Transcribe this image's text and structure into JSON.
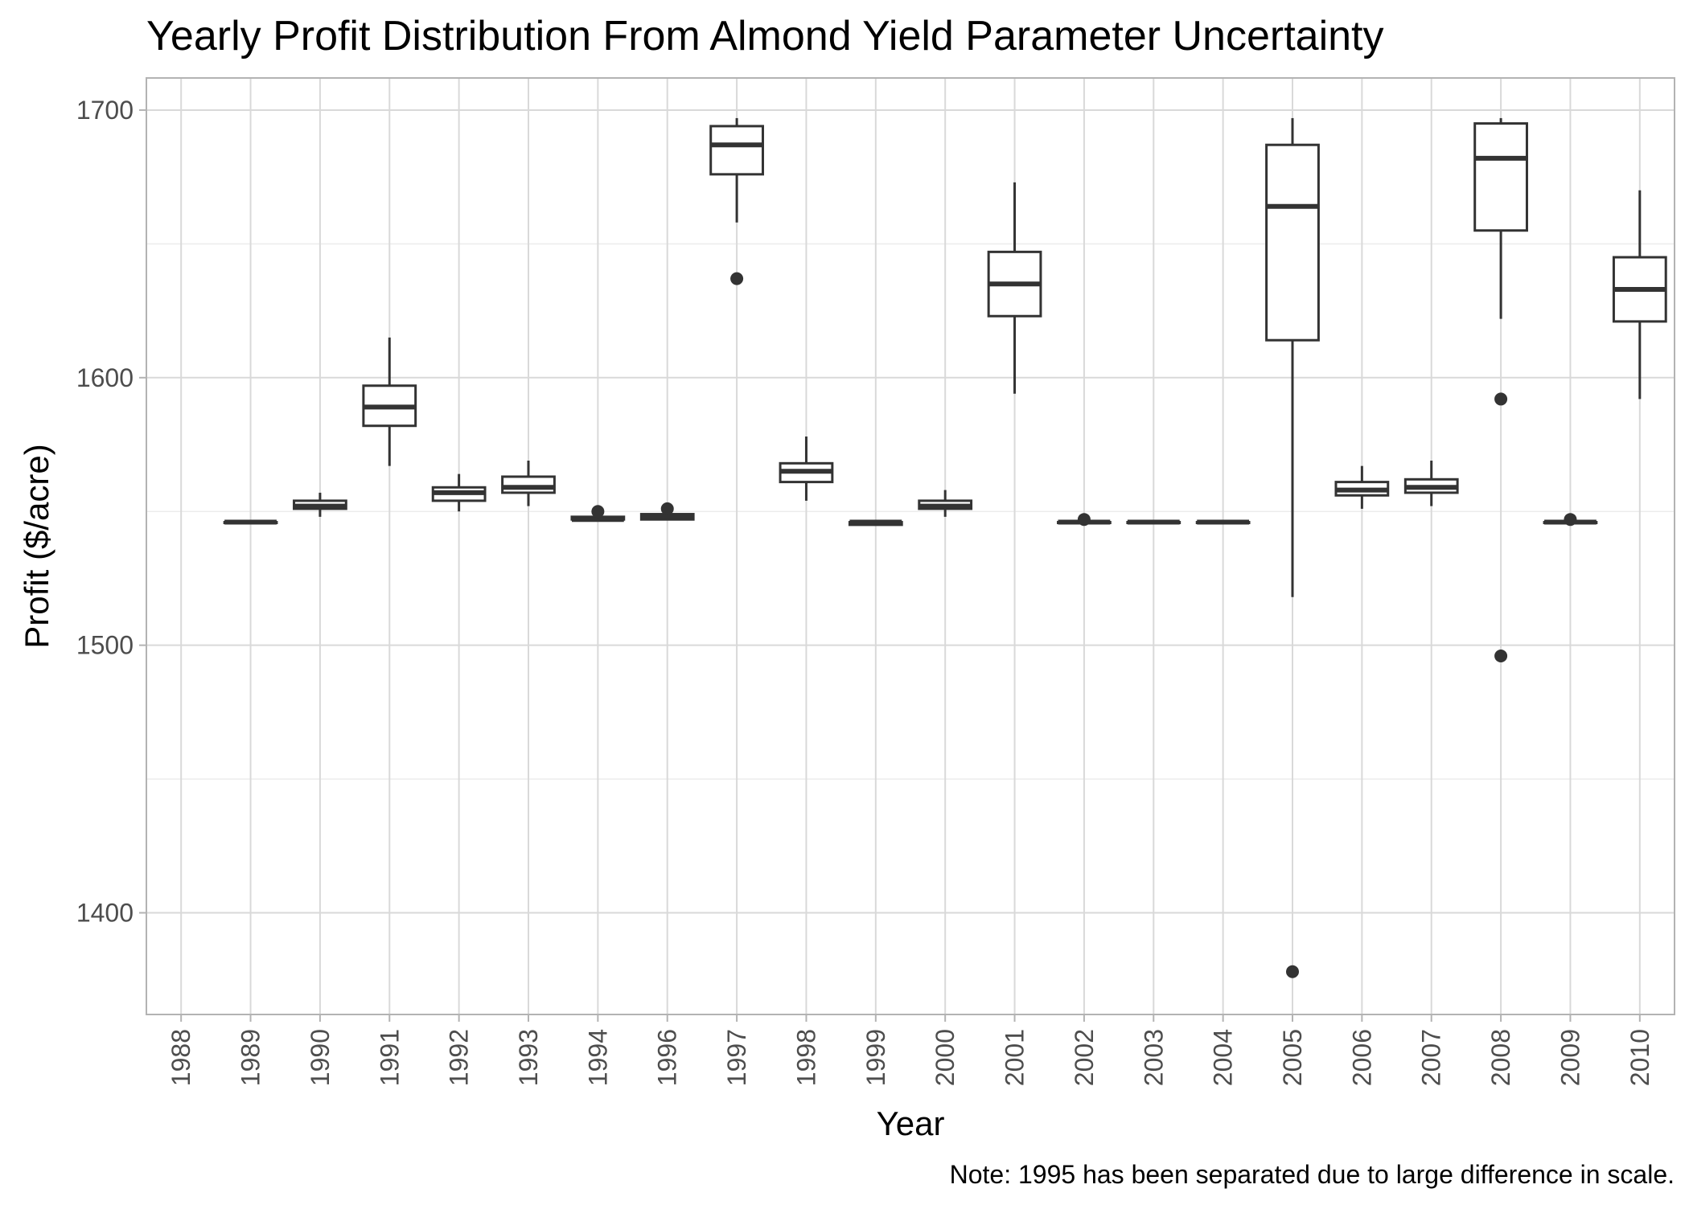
{
  "chart_data": {
    "type": "boxplot",
    "title": "Yearly Profit Distribution From Almond Yield Parameter Uncertainty",
    "xlabel": "Year",
    "ylabel": "Profit ($/acre)",
    "caption": "Note: 1995 has been separated due to large difference in scale.",
    "ylim": [
      1362,
      1712
    ],
    "yticks": [
      1400,
      1500,
      1600,
      1700
    ],
    "grid": true,
    "categories": [
      "1988",
      "1989",
      "1990",
      "1991",
      "1992",
      "1993",
      "1994",
      "1996",
      "1997",
      "1998",
      "1999",
      "2000",
      "2001",
      "2002",
      "2003",
      "2004",
      "2005",
      "2006",
      "2007",
      "2008",
      "2009",
      "2010"
    ],
    "boxes": [
      {
        "year": "1988",
        "min": null,
        "q1": null,
        "median": null,
        "q3": null,
        "max": null,
        "outliers": []
      },
      {
        "year": "1989",
        "min": 1546,
        "q1": 1546,
        "median": 1546,
        "q3": 1546,
        "max": 1546,
        "outliers": []
      },
      {
        "year": "1990",
        "min": 1548,
        "q1": 1551,
        "median": 1552,
        "q3": 1554,
        "max": 1557,
        "outliers": []
      },
      {
        "year": "1991",
        "min": 1567,
        "q1": 1582,
        "median": 1589,
        "q3": 1597,
        "max": 1615,
        "outliers": []
      },
      {
        "year": "1992",
        "min": 1550,
        "q1": 1554,
        "median": 1557,
        "q3": 1559,
        "max": 1564,
        "outliers": []
      },
      {
        "year": "1993",
        "min": 1552,
        "q1": 1557,
        "median": 1559,
        "q3": 1563,
        "max": 1569,
        "outliers": []
      },
      {
        "year": "1994",
        "min": 1547,
        "q1": 1547,
        "median": 1547,
        "q3": 1548,
        "max": 1548,
        "outliers": [
          1550
        ]
      },
      {
        "year": "1996",
        "min": 1547,
        "q1": 1547,
        "median": 1548,
        "q3": 1549,
        "max": 1549,
        "outliers": [
          1551
        ]
      },
      {
        "year": "1997",
        "min": 1658,
        "q1": 1676,
        "median": 1687,
        "q3": 1694,
        "max": 1697,
        "outliers": [
          1637
        ]
      },
      {
        "year": "1998",
        "min": 1554,
        "q1": 1561,
        "median": 1565,
        "q3": 1568,
        "max": 1578,
        "outliers": []
      },
      {
        "year": "1999",
        "min": 1545,
        "q1": 1545,
        "median": 1546,
        "q3": 1546,
        "max": 1546,
        "outliers": []
      },
      {
        "year": "2000",
        "min": 1548,
        "q1": 1551,
        "median": 1552,
        "q3": 1554,
        "max": 1558,
        "outliers": []
      },
      {
        "year": "2001",
        "min": 1594,
        "q1": 1623,
        "median": 1635,
        "q3": 1647,
        "max": 1673,
        "outliers": []
      },
      {
        "year": "2002",
        "min": 1546,
        "q1": 1546,
        "median": 1546,
        "q3": 1546,
        "max": 1547,
        "outliers": [
          1547
        ]
      },
      {
        "year": "2003",
        "min": 1546,
        "q1": 1546,
        "median": 1546,
        "q3": 1546,
        "max": 1546,
        "outliers": []
      },
      {
        "year": "2004",
        "min": 1546,
        "q1": 1546,
        "median": 1546,
        "q3": 1546,
        "max": 1546,
        "outliers": []
      },
      {
        "year": "2005",
        "min": 1518,
        "q1": 1614,
        "median": 1664,
        "q3": 1687,
        "max": 1697,
        "outliers": [
          1378
        ]
      },
      {
        "year": "2006",
        "min": 1551,
        "q1": 1556,
        "median": 1558,
        "q3": 1561,
        "max": 1567,
        "outliers": []
      },
      {
        "year": "2007",
        "min": 1552,
        "q1": 1557,
        "median": 1559,
        "q3": 1562,
        "max": 1569,
        "outliers": []
      },
      {
        "year": "2008",
        "min": 1622,
        "q1": 1655,
        "median": 1682,
        "q3": 1695,
        "max": 1697,
        "outliers": [
          1592,
          1496
        ]
      },
      {
        "year": "2009",
        "min": 1546,
        "q1": 1546,
        "median": 1546,
        "q3": 1546,
        "max": 1547,
        "outliers": [
          1547
        ]
      },
      {
        "year": "2010",
        "min": 1592,
        "q1": 1621,
        "median": 1633,
        "q3": 1645,
        "max": 1670,
        "outliers": []
      }
    ]
  },
  "colors": {
    "box_stroke": "#333333",
    "box_fill": "#ffffff",
    "grid_major": "#d9d9d9",
    "grid_minor": "#ececec",
    "panel_border": "#b3b3b3",
    "tick_text": "#4d4d4d",
    "text": "#000000"
  }
}
